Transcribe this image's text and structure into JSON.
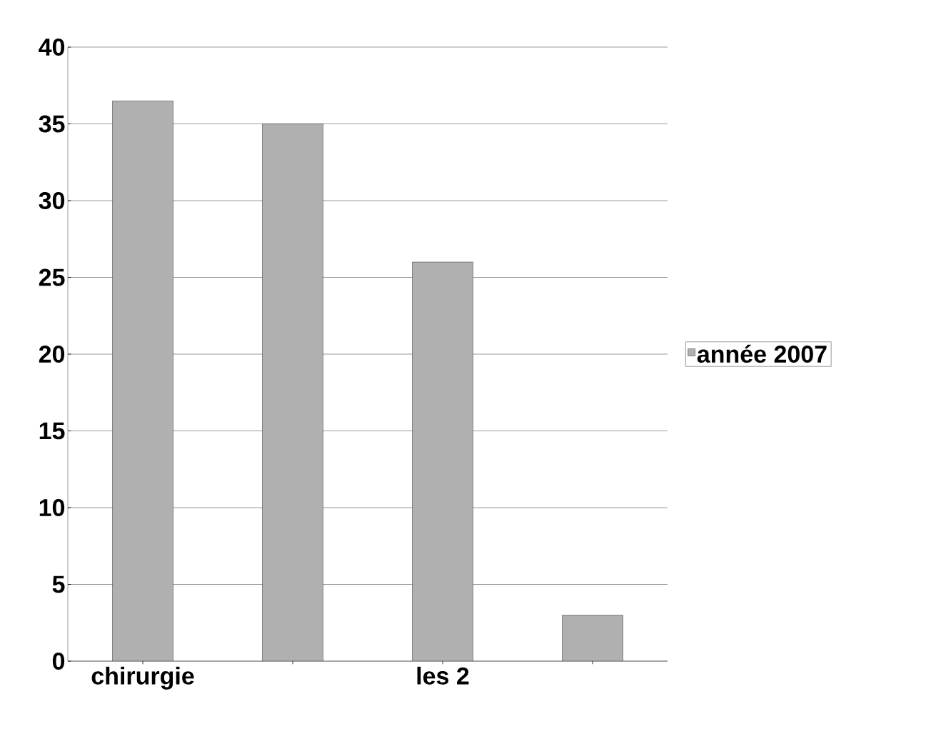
{
  "chart_data": {
    "type": "bar",
    "categories": [
      "chirurgie",
      null,
      "les 2",
      null
    ],
    "series": [
      {
        "name": "année 2007",
        "color": "#b0b0b0",
        "values": [
          36.5,
          35,
          26,
          3
        ]
      }
    ],
    "ylim": [
      0,
      40
    ],
    "yticks": [
      0,
      5,
      10,
      15,
      20,
      25,
      30,
      35,
      40
    ],
    "grid": "y",
    "legend": "right"
  }
}
